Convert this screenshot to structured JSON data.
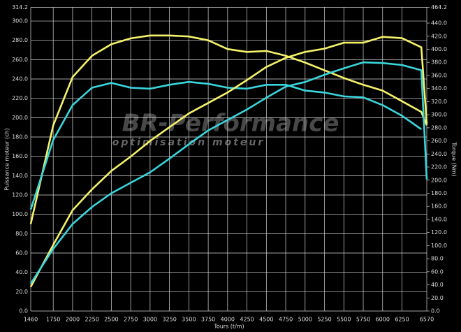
{
  "chart_data": {
    "type": "line",
    "xlabel": "Tours (t/m)",
    "ylabel": "Puissance moteur (ch)",
    "y2label": "Torque (Nm)",
    "watermark": "BR-Performance",
    "watermark_sub": "optimisation moteur",
    "x": [
      1460,
      1750,
      2000,
      2250,
      2500,
      2750,
      3000,
      3250,
      3500,
      3750,
      4000,
      4250,
      4500,
      4750,
      5000,
      5250,
      5500,
      5750,
      6000,
      6250,
      6500,
      6570
    ],
    "xlim": [
      1460,
      6570
    ],
    "xticks": [
      1460,
      1750,
      2000,
      2250,
      2500,
      2750,
      3000,
      3250,
      3500,
      3750,
      4000,
      4250,
      4500,
      4750,
      5000,
      5250,
      5500,
      5750,
      6000,
      6250,
      6570
    ],
    "ylim": [
      0,
      314.2
    ],
    "yticks": [
      {
        "value": 0,
        "label": "0.0"
      },
      {
        "value": 20,
        "label": "20.0"
      },
      {
        "value": 40,
        "label": "40.0"
      },
      {
        "value": 60,
        "label": "60.0"
      },
      {
        "value": 80,
        "label": "80.0"
      },
      {
        "value": 100,
        "label": "100.0"
      },
      {
        "value": 120,
        "label": "120.0"
      },
      {
        "value": 140,
        "label": "140.0"
      },
      {
        "value": 160,
        "label": "160.0"
      },
      {
        "value": 180,
        "label": "180.0"
      },
      {
        "value": 200,
        "label": "200.0"
      },
      {
        "value": 220,
        "label": "220.0"
      },
      {
        "value": 240,
        "label": "240.0"
      },
      {
        "value": 260,
        "label": "260.0"
      },
      {
        "value": 280,
        "label": "280.0"
      },
      {
        "value": 300,
        "label": "300.0"
      },
      314.2
    ],
    "y2lim": [
      0,
      464.2
    ],
    "y2ticks": [
      {
        "value": 0,
        "label": "0.0"
      },
      {
        "value": 20,
        "label": "20.0"
      },
      {
        "value": 40,
        "label": "40.0"
      },
      {
        "value": 60,
        "label": "60.0"
      },
      {
        "value": 80,
        "label": "80.0"
      },
      {
        "value": 100,
        "label": "100.0"
      },
      {
        "value": 120,
        "label": "120.0"
      },
      {
        "value": 140,
        "label": "140.0"
      },
      {
        "value": 160,
        "label": "160.0"
      },
      {
        "value": 180,
        "label": "180.0"
      },
      {
        "value": 200,
        "label": "200.0"
      },
      {
        "value": 220,
        "label": "220.0"
      },
      {
        "value": 240,
        "label": "240.0"
      },
      {
        "value": 260,
        "label": "260.0"
      },
      {
        "value": 280,
        "label": "280.0"
      },
      {
        "value": 300,
        "label": "300.0"
      },
      {
        "value": 320,
        "label": "320.0"
      },
      {
        "value": 340,
        "label": "340.0"
      },
      {
        "value": 360,
        "label": "360.0"
      },
      {
        "value": 380,
        "label": "380.0"
      },
      {
        "value": 400,
        "label": "400.0"
      },
      {
        "value": 420,
        "label": "420.0"
      },
      {
        "value": 440,
        "label": "440.0"
      },
      464.2
    ],
    "grid": true,
    "series": [
      {
        "color": "#f4f26a",
        "values": [
          90,
          192,
          242,
          264,
          276,
          282,
          285,
          285,
          284,
          280,
          271,
          268,
          269,
          264,
          257,
          249,
          241,
          234,
          228,
          217,
          206,
          192
        ]
      },
      {
        "color": "#3ad6dc",
        "values": [
          105,
          177,
          213,
          231,
          236,
          231,
          230,
          234,
          237,
          235,
          231,
          230,
          234,
          234,
          228,
          226,
          222,
          221,
          213,
          202,
          188,
          null
        ]
      },
      {
        "color": "#f4f26a",
        "axis": "y2",
        "values": [
          37,
          101,
          154,
          186,
          214,
          236,
          260,
          281,
          302,
          318,
          334,
          353,
          373,
          387,
          396,
          401,
          410,
          410,
          419,
          417,
          403,
          286
        ]
      },
      {
        "color": "#3ad6dc",
        "axis": "y2",
        "values": [
          42,
          95,
          133,
          159,
          180,
          196,
          212,
          233,
          255,
          276,
          292,
          308,
          326,
          343,
          350,
          361,
          371,
          380,
          379,
          376,
          368,
          201
        ]
      }
    ]
  }
}
